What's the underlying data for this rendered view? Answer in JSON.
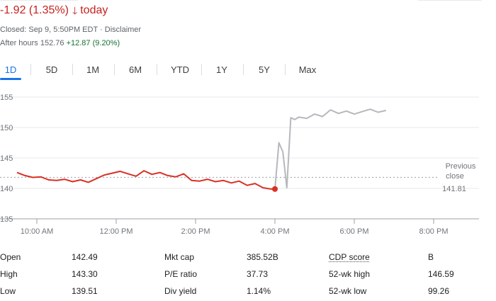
{
  "header": {
    "change_text": "-1.92 (1.35%)",
    "change_arrow": "down-arrow",
    "change_suffix": "today",
    "closed_text": "Closed: Sep 9, 5:50PM EDT · Disclaimer",
    "after_hours_label": "After hours",
    "after_hours_price": "152.76",
    "after_hours_change": "+12.87 (9.20%)"
  },
  "tabs": [
    {
      "label": "1D",
      "active": true
    },
    {
      "label": "5D",
      "active": false
    },
    {
      "label": "1M",
      "active": false
    },
    {
      "label": "6M",
      "active": false
    },
    {
      "label": "YTD",
      "active": false
    },
    {
      "label": "1Y",
      "active": false
    },
    {
      "label": "5Y",
      "active": false
    },
    {
      "label": "Max",
      "active": false
    }
  ],
  "chart_data": {
    "type": "line",
    "xlabel": "",
    "ylabel": "",
    "x_ticks": [
      "10:00 AM",
      "12:00 PM",
      "2:00 PM",
      "4:00 PM",
      "6:00 PM",
      "8:00 PM"
    ],
    "y_ticks": [
      "135",
      "140",
      "145",
      "150",
      "155"
    ],
    "ylim": [
      135,
      155
    ],
    "xlim": [
      9.5,
      20.5
    ],
    "grid": true,
    "previous_close_label_1": "Previous",
    "previous_close_label_2": "close",
    "previous_close_value": 141.81,
    "previous_close_text": "141.81",
    "series": [
      {
        "session": "regular",
        "color": "#d93025",
        "x": [
          9.5,
          9.7,
          9.9,
          10.1,
          10.3,
          10.5,
          10.7,
          10.9,
          11.1,
          11.3,
          11.5,
          11.7,
          11.9,
          12.1,
          12.3,
          12.5,
          12.7,
          12.9,
          13.1,
          13.3,
          13.5,
          13.7,
          13.9,
          14.1,
          14.3,
          14.5,
          14.7,
          14.9,
          15.1,
          15.3,
          15.5,
          15.7,
          15.9,
          16.0
        ],
        "values": [
          142.6,
          142.1,
          141.8,
          141.9,
          141.4,
          141.3,
          141.5,
          141.1,
          141.4,
          141.0,
          141.6,
          142.2,
          142.5,
          142.8,
          142.4,
          142.0,
          142.9,
          142.3,
          142.6,
          142.1,
          141.9,
          142.4,
          141.3,
          141.2,
          141.5,
          141.1,
          141.3,
          140.9,
          141.2,
          140.5,
          140.8,
          140.1,
          139.9,
          139.9
        ]
      },
      {
        "session": "after-hours",
        "color": "#b5b8bc",
        "x": [
          16.0,
          16.1,
          16.2,
          16.3,
          16.4,
          16.5,
          16.6,
          16.8,
          17.0,
          17.2,
          17.4,
          17.6,
          17.8,
          18.0,
          18.2,
          18.4,
          18.6,
          18.8
        ],
        "values": [
          139.9,
          147.5,
          146.0,
          140.1,
          151.6,
          151.3,
          151.7,
          151.5,
          152.2,
          151.8,
          152.9,
          152.3,
          152.7,
          152.2,
          152.6,
          153.0,
          152.5,
          152.8
        ]
      }
    ]
  },
  "stats": {
    "col1": [
      {
        "label": "Open",
        "value": "142.49"
      },
      {
        "label": "High",
        "value": "143.30"
      },
      {
        "label": "Low",
        "value": "139.51"
      }
    ],
    "col2": [
      {
        "label": "Mkt cap",
        "value": "385.52B"
      },
      {
        "label": "P/E ratio",
        "value": "37.73"
      },
      {
        "label": "Div yield",
        "value": "1.14%"
      }
    ],
    "col3": [
      {
        "label": "CDP score",
        "value": "B"
      },
      {
        "label": "52-wk high",
        "value": "146.59"
      },
      {
        "label": "52-wk low",
        "value": "99.26"
      }
    ]
  },
  "colors": {
    "negative": "#c5221f",
    "positive": "#137333",
    "active_tab": "#1a73e8"
  }
}
